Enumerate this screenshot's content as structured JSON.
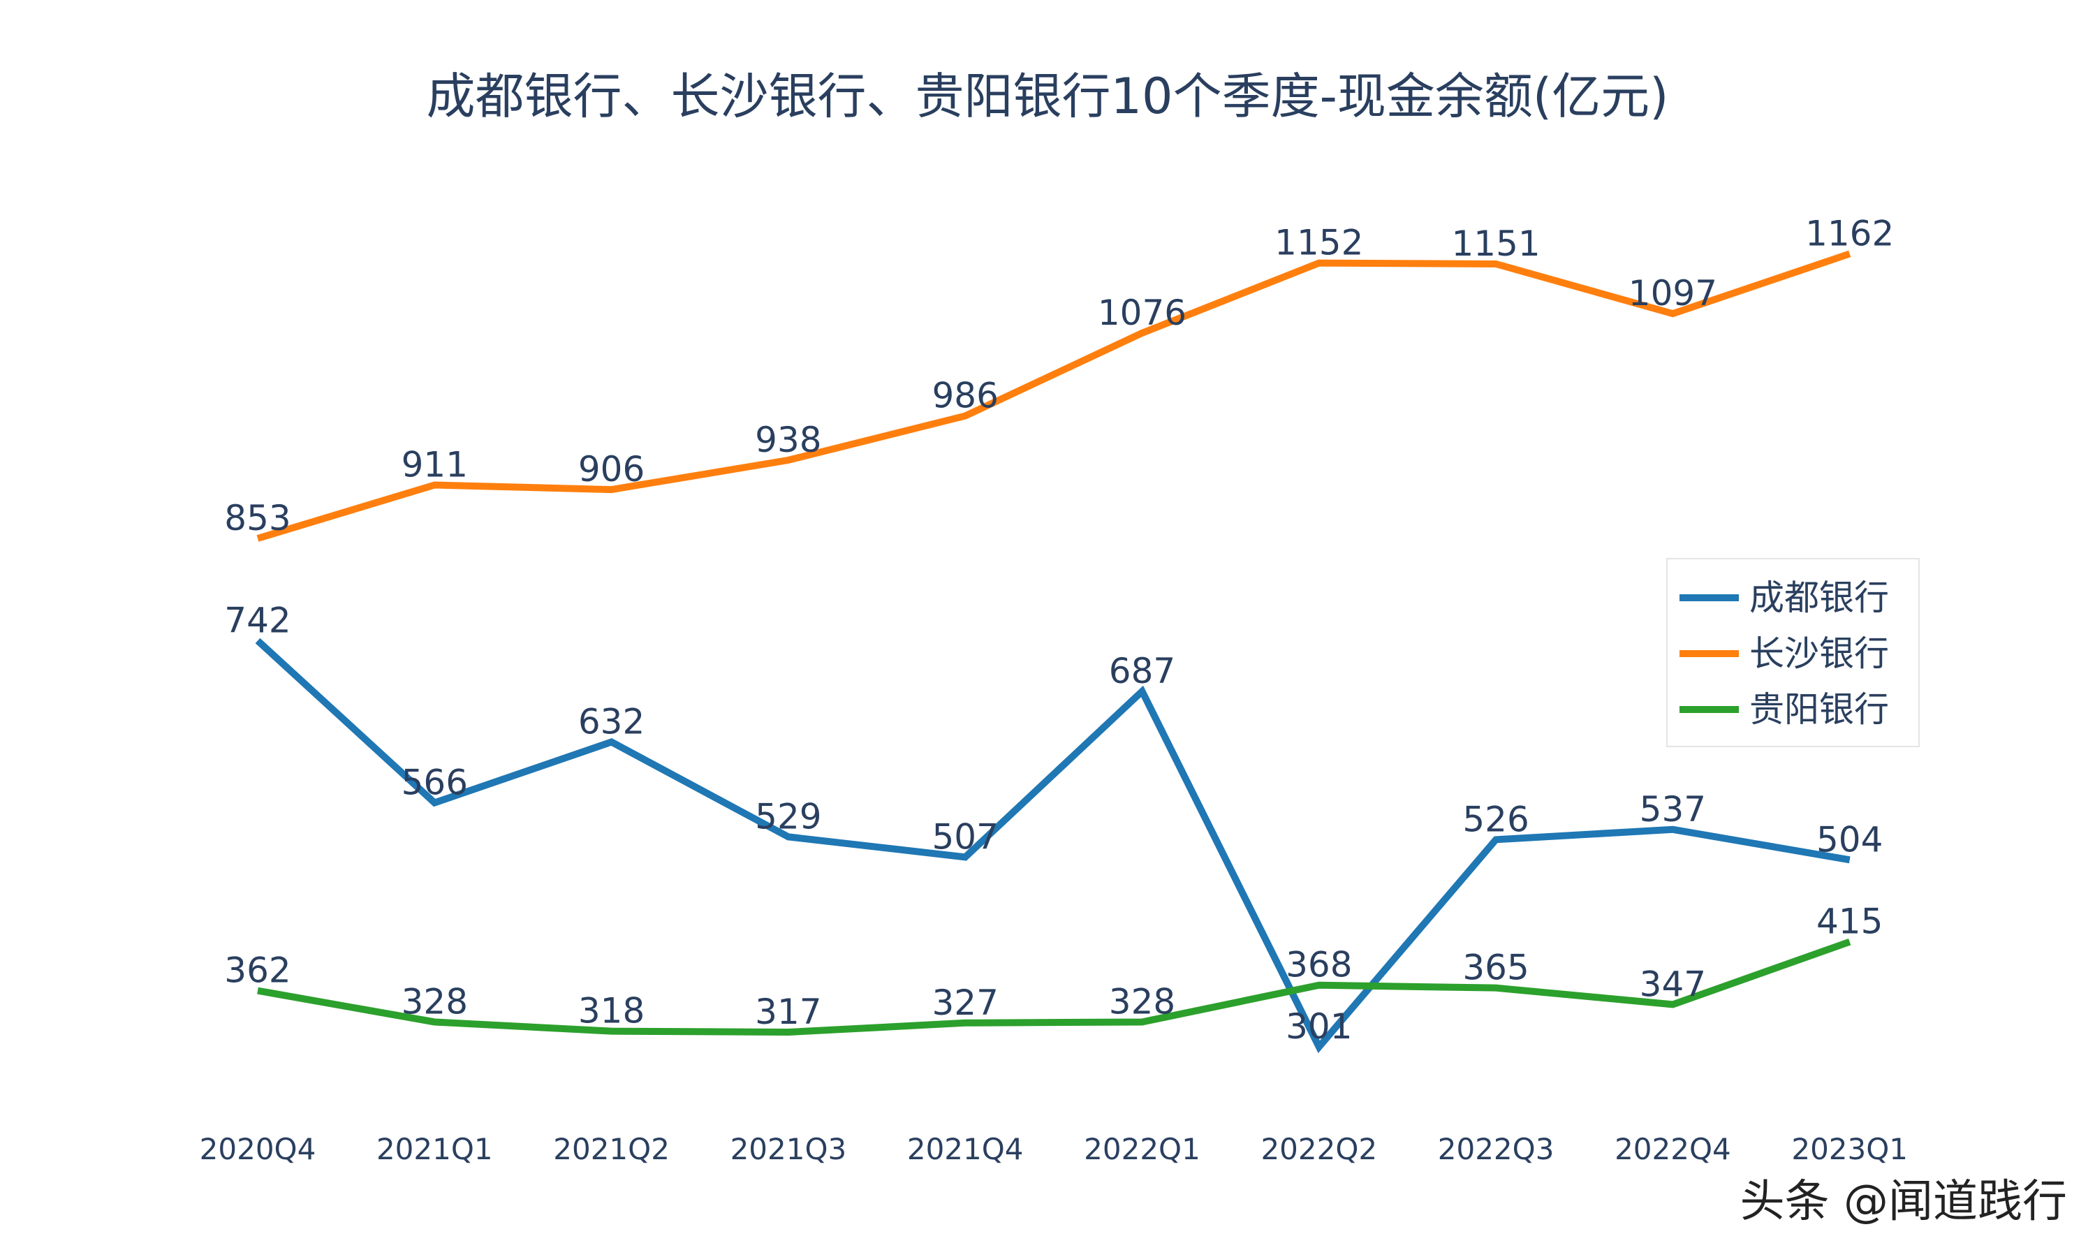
{
  "chart_data": {
    "type": "line",
    "title": "成都银行、长沙银行、贵阳银行10个季度-现金余额(亿元)",
    "xlabel": "",
    "ylabel": "",
    "categories": [
      "2020Q4",
      "2021Q1",
      "2021Q2",
      "2021Q3",
      "2021Q4",
      "2022Q1",
      "2022Q2",
      "2022Q3",
      "2022Q4",
      "2023Q1"
    ],
    "series": [
      {
        "name": "成都银行",
        "color": "#1f77b4",
        "values": [
          742,
          566,
          632,
          529,
          507,
          687,
          301,
          526,
          537,
          504
        ]
      },
      {
        "name": "长沙银行",
        "color": "#ff7f0e",
        "values": [
          853,
          911,
          906,
          938,
          986,
          1076,
          1152,
          1151,
          1097,
          1162
        ]
      },
      {
        "name": "贵阳银行",
        "color": "#2ca02c",
        "values": [
          362,
          328,
          318,
          317,
          327,
          328,
          368,
          365,
          347,
          415
        ]
      }
    ],
    "grid": false,
    "yaxis_visible": false,
    "legend_position": "right"
  },
  "watermark": "头条 @闻道践行"
}
